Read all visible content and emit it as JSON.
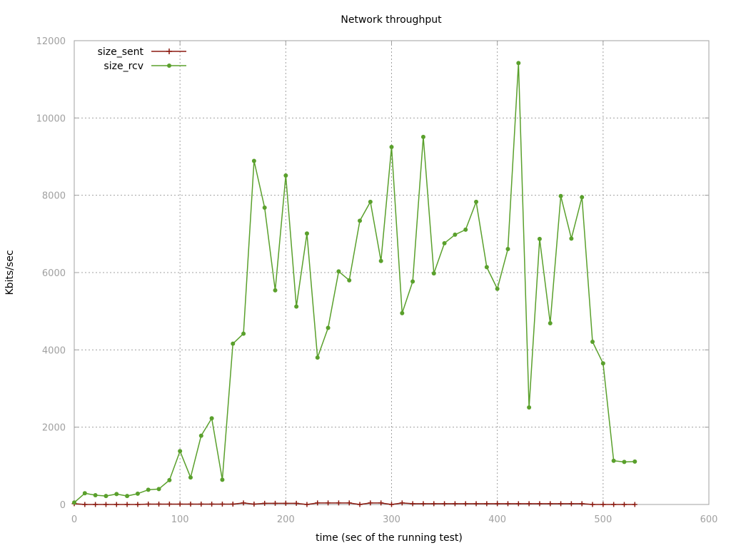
{
  "chart_data": {
    "type": "line",
    "title": "Network throughput",
    "xlabel": "time (sec of the running test)",
    "ylabel": "Kbits/sec",
    "xlim": [
      0,
      600
    ],
    "ylim": [
      0,
      12000
    ],
    "xticks": [
      0,
      100,
      200,
      300,
      400,
      500,
      600
    ],
    "yticks": [
      0,
      2000,
      4000,
      6000,
      8000,
      10000,
      12000
    ],
    "grid": true,
    "legend_position": "top-left",
    "x": [
      0,
      10,
      20,
      30,
      40,
      50,
      60,
      70,
      80,
      90,
      100,
      110,
      120,
      130,
      140,
      150,
      160,
      170,
      180,
      190,
      200,
      210,
      220,
      230,
      240,
      250,
      260,
      270,
      280,
      290,
      300,
      310,
      320,
      330,
      340,
      350,
      360,
      370,
      380,
      390,
      400,
      410,
      420,
      430,
      440,
      450,
      460,
      470,
      480,
      490,
      500,
      510,
      520,
      530
    ],
    "series": [
      {
        "name": "size_sent",
        "color": "#8b1a10",
        "marker": "plus",
        "values": [
          20,
          0,
          0,
          0,
          0,
          0,
          0,
          10,
          10,
          10,
          10,
          10,
          10,
          10,
          10,
          10,
          40,
          10,
          30,
          30,
          30,
          30,
          0,
          40,
          40,
          40,
          40,
          0,
          40,
          40,
          0,
          40,
          20,
          20,
          20,
          20,
          20,
          20,
          20,
          20,
          20,
          20,
          20,
          20,
          20,
          20,
          20,
          20,
          20,
          0,
          0,
          0,
          0,
          0
        ]
      },
      {
        "name": "size_rcv",
        "color": "#5aa02c",
        "marker": "circle",
        "values": [
          50,
          290,
          240,
          220,
          270,
          220,
          280,
          380,
          400,
          630,
          1380,
          700,
          1780,
          2230,
          640,
          4160,
          4420,
          8890,
          7680,
          5540,
          8510,
          5120,
          7010,
          3800,
          4570,
          6030,
          5800,
          7340,
          7830,
          6300,
          9250,
          4950,
          5770,
          9510,
          5980,
          6760,
          6980,
          7110,
          7830,
          6140,
          5580,
          6610,
          11420,
          2510,
          6870,
          4690,
          7980,
          6880,
          7950,
          4210,
          3650,
          1130,
          1100,
          1110
        ]
      }
    ]
  }
}
